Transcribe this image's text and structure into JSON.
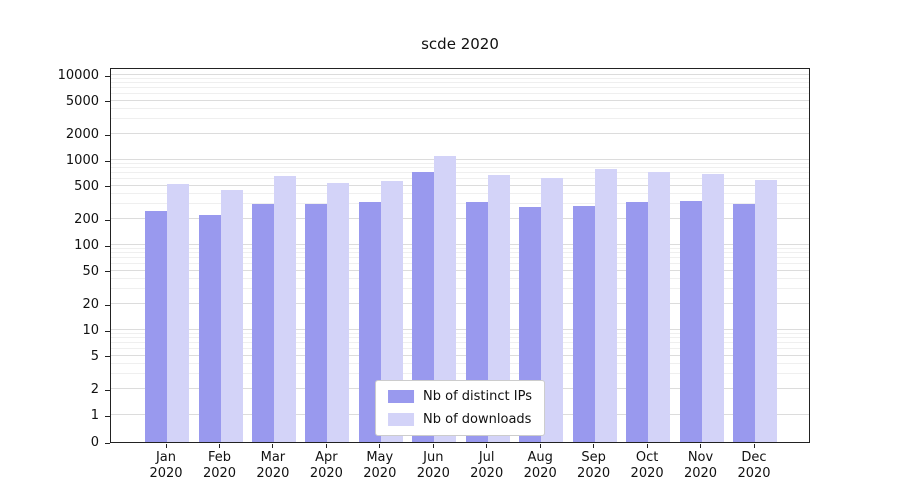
{
  "chart_data": {
    "type": "bar",
    "title": "scde 2020",
    "y_scale": "symlog",
    "y_ticks": [
      0,
      1,
      2,
      5,
      10,
      20,
      50,
      100,
      200,
      500,
      1000,
      2000,
      5000,
      10000
    ],
    "ylim": [
      0,
      10000
    ],
    "grid": true,
    "legend_position": "lower center",
    "year": "2020",
    "categories": [
      "Jan",
      "Feb",
      "Mar",
      "Apr",
      "May",
      "Jun",
      "Jul",
      "Aug",
      "Sep",
      "Oct",
      "Nov",
      "Dec"
    ],
    "series": [
      {
        "name": "Nb of distinct IPs",
        "color": "#9999ee",
        "values": [
          250,
          225,
          300,
          300,
          320,
          720,
          320,
          280,
          290,
          320,
          330,
          300
        ]
      },
      {
        "name": "Nb of downloads",
        "color": "#d3d3f8",
        "values": [
          520,
          450,
          650,
          530,
          570,
          1120,
          660,
          620,
          780,
          730,
          690,
          590
        ]
      }
    ]
  }
}
